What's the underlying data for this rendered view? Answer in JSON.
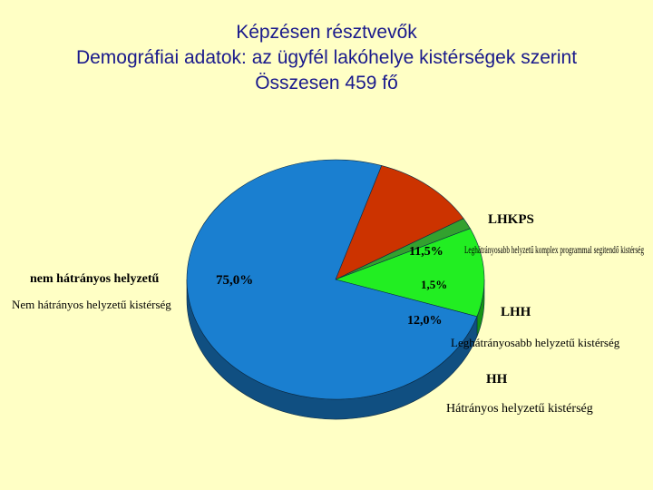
{
  "title": {
    "line1": "Képzésen résztvevők",
    "line2": "Demográfiai adatok: az ügyfél lakóhelye kistérségek szerint",
    "line3": "Összesen 459 fő"
  },
  "chart_data": {
    "type": "pie",
    "title": "Képzésen résztvevők — Demográfiai adatok: az ügyfél lakóhelye kistérségek szerint — Összesen 459 fő",
    "three_d": true,
    "slices": [
      {
        "code": "LHKPS",
        "description": "Leghátrányosabb helyzetű komplex programmal segitendő kistérség",
        "value": 11.5,
        "value_label": "11,5%",
        "color": "#cc3300"
      },
      {
        "code": "",
        "description": "",
        "value": 1.5,
        "value_label": "1,5%",
        "color": "#33a12f"
      },
      {
        "code": "LHH",
        "description": "Leghátrányosabb helyzetű kistérség",
        "value": 12.0,
        "value_label": "12,0%",
        "color": "#22ee22"
      },
      {
        "code": "HH",
        "description": "Hátrányos helyzetű kistérség",
        "value": 0,
        "value_label": "",
        "color": "#1f7f1f"
      },
      {
        "code": "nem hátrányos helyzetű",
        "description": "Nem hátrányos helyzetű kistérség",
        "value": 75.0,
        "value_label": "75,0%",
        "color": "#1a7fd0"
      }
    ]
  }
}
